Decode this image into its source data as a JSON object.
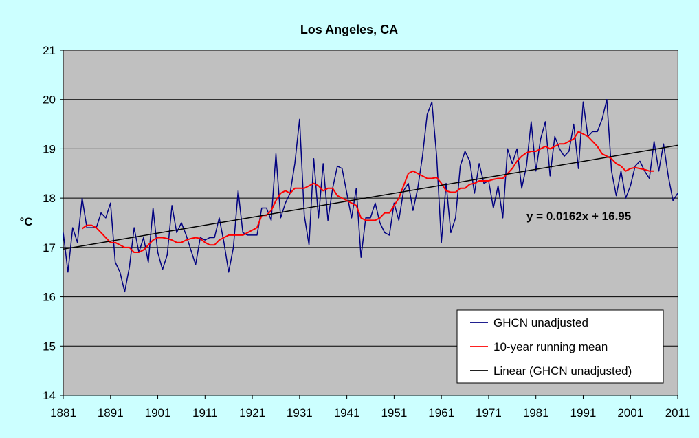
{
  "chart_data": {
    "type": "line",
    "title": "Los Angeles, CA",
    "xlabel": "",
    "ylabel": "°C",
    "xlim": [
      1881,
      2011
    ],
    "ylim": [
      14,
      21
    ],
    "x_ticks": [
      "1881",
      "1891",
      "1901",
      "1911",
      "1921",
      "1931",
      "1941",
      "1951",
      "1961",
      "1971",
      "1981",
      "1991",
      "2001",
      "2011"
    ],
    "y_ticks": [
      "14",
      "15",
      "16",
      "17",
      "18",
      "19",
      "20",
      "21"
    ],
    "grid": "horizontal",
    "legend_position": "bottom-right",
    "annotation": "y = 0.0162x + 16.95",
    "series": [
      {
        "name": "GHCN unadjusted",
        "color": "#000080",
        "x": [
          1881,
          1882,
          1883,
          1884,
          1885,
          1886,
          1887,
          1888,
          1889,
          1890,
          1891,
          1892,
          1893,
          1894,
          1895,
          1896,
          1897,
          1898,
          1899,
          1900,
          1901,
          1902,
          1903,
          1904,
          1905,
          1906,
          1907,
          1908,
          1909,
          1910,
          1911,
          1912,
          1913,
          1914,
          1915,
          1916,
          1917,
          1918,
          1919,
          1920,
          1921,
          1922,
          1923,
          1924,
          1925,
          1926,
          1927,
          1928,
          1929,
          1930,
          1931,
          1932,
          1933,
          1934,
          1935,
          1936,
          1937,
          1938,
          1939,
          1940,
          1941,
          1942,
          1943,
          1944,
          1945,
          1946,
          1947,
          1948,
          1949,
          1950,
          1951,
          1952,
          1953,
          1954,
          1955,
          1956,
          1957,
          1958,
          1959,
          1960,
          1961,
          1962,
          1963,
          1964,
          1965,
          1966,
          1967,
          1968,
          1969,
          1970,
          1971,
          1972,
          1973,
          1974,
          1975,
          1976,
          1977,
          1978,
          1979,
          1980,
          1981,
          1982,
          1983,
          1984,
          1985,
          1986,
          1987,
          1988,
          1989,
          1990,
          1991,
          1992,
          1993,
          1994,
          1995,
          1996,
          1997,
          1998,
          1999,
          2000,
          2001,
          2002,
          2003,
          2004,
          2005,
          2006,
          2007,
          2008,
          2009,
          2010,
          2011
        ],
        "values": [
          17.3,
          16.5,
          17.4,
          17.1,
          18.0,
          17.4,
          17.4,
          17.4,
          17.7,
          17.6,
          17.9,
          16.7,
          16.5,
          16.1,
          16.6,
          17.4,
          16.9,
          17.2,
          16.7,
          17.8,
          16.9,
          16.55,
          16.85,
          17.85,
          17.3,
          17.5,
          17.25,
          16.95,
          16.65,
          17.2,
          17.15,
          17.2,
          17.2,
          17.6,
          17.1,
          16.5,
          17.0,
          18.15,
          17.3,
          17.25,
          17.25,
          17.25,
          17.8,
          17.8,
          17.55,
          18.9,
          17.6,
          17.9,
          18.1,
          18.7,
          19.6,
          17.65,
          17.05,
          18.8,
          17.6,
          18.7,
          17.55,
          18.2,
          18.65,
          18.6,
          18.1,
          17.6,
          18.2,
          16.8,
          17.6,
          17.6,
          17.9,
          17.5,
          17.3,
          17.25,
          17.9,
          17.55,
          18.15,
          18.3,
          17.75,
          18.2,
          18.85,
          19.7,
          19.95,
          18.85,
          17.1,
          18.3,
          17.3,
          17.6,
          18.65,
          18.95,
          18.75,
          18.1,
          18.7,
          18.3,
          18.35,
          17.8,
          18.25,
          17.6,
          19.0,
          18.7,
          19.0,
          18.2,
          18.65,
          19.55,
          18.55,
          19.2,
          19.55,
          18.45,
          19.25,
          19.0,
          18.85,
          18.95,
          19.5,
          18.6,
          19.95,
          19.25,
          19.35,
          19.35,
          19.6,
          20.0,
          18.55,
          18.05,
          18.55,
          18.0,
          18.25,
          18.65,
          18.75,
          18.55,
          18.4,
          19.15,
          18.55,
          19.1,
          18.45,
          17.95,
          18.1
        ]
      },
      {
        "name": "10-year running mean",
        "color": "#ff0000",
        "x": [
          1885,
          1886,
          1887,
          1888,
          1889,
          1890,
          1891,
          1892,
          1893,
          1894,
          1895,
          1896,
          1897,
          1898,
          1899,
          1900,
          1901,
          1902,
          1903,
          1904,
          1905,
          1906,
          1907,
          1908,
          1909,
          1910,
          1911,
          1912,
          1913,
          1914,
          1915,
          1916,
          1917,
          1918,
          1919,
          1920,
          1921,
          1922,
          1923,
          1924,
          1925,
          1926,
          1927,
          1928,
          1929,
          1930,
          1931,
          1932,
          1933,
          1934,
          1935,
          1936,
          1937,
          1938,
          1939,
          1940,
          1941,
          1942,
          1943,
          1944,
          1945,
          1946,
          1947,
          1948,
          1949,
          1950,
          1951,
          1952,
          1953,
          1954,
          1955,
          1956,
          1957,
          1958,
          1959,
          1960,
          1961,
          1962,
          1963,
          1964,
          1965,
          1966,
          1967,
          1968,
          1969,
          1970,
          1971,
          1972,
          1973,
          1974,
          1975,
          1976,
          1977,
          1978,
          1979,
          1980,
          1981,
          1982,
          1983,
          1984,
          1985,
          1986,
          1987,
          1988,
          1989,
          1990,
          1991,
          1992,
          1993,
          1994,
          1995,
          1996,
          1997,
          1998,
          1999,
          2000,
          2001,
          2002,
          2003,
          2004,
          2005,
          2006
        ],
        "values": [
          17.38,
          17.45,
          17.45,
          17.4,
          17.3,
          17.2,
          17.1,
          17.1,
          17.05,
          17.0,
          17.0,
          16.9,
          16.9,
          16.95,
          17.05,
          17.15,
          17.2,
          17.2,
          17.18,
          17.15,
          17.1,
          17.1,
          17.15,
          17.18,
          17.2,
          17.18,
          17.1,
          17.05,
          17.05,
          17.15,
          17.2,
          17.25,
          17.25,
          17.25,
          17.25,
          17.3,
          17.35,
          17.4,
          17.65,
          17.65,
          17.75,
          17.95,
          18.1,
          18.15,
          18.1,
          18.2,
          18.2,
          18.2,
          18.25,
          18.3,
          18.25,
          18.15,
          18.2,
          18.2,
          18.05,
          18.0,
          17.95,
          17.9,
          17.85,
          17.6,
          17.55,
          17.55,
          17.55,
          17.6,
          17.7,
          17.7,
          17.85,
          18.0,
          18.25,
          18.5,
          18.55,
          18.5,
          18.45,
          18.4,
          18.4,
          18.42,
          18.3,
          18.15,
          18.12,
          18.12,
          18.2,
          18.2,
          18.28,
          18.3,
          18.35,
          18.35,
          18.35,
          18.38,
          18.4,
          18.4,
          18.5,
          18.6,
          18.75,
          18.85,
          18.92,
          18.95,
          18.95,
          19.0,
          19.05,
          19.0,
          19.05,
          19.1,
          19.1,
          19.15,
          19.2,
          19.35,
          19.3,
          19.25,
          19.15,
          19.05,
          18.9,
          18.85,
          18.8,
          18.7,
          18.65,
          18.55,
          18.6,
          18.62,
          18.6,
          18.58,
          18.55,
          18.55
        ]
      },
      {
        "name": "Linear (GHCN unadjusted)",
        "color": "#000000",
        "x": [
          1881,
          2011
        ],
        "values": [
          16.966,
          19.07
        ]
      }
    ]
  }
}
